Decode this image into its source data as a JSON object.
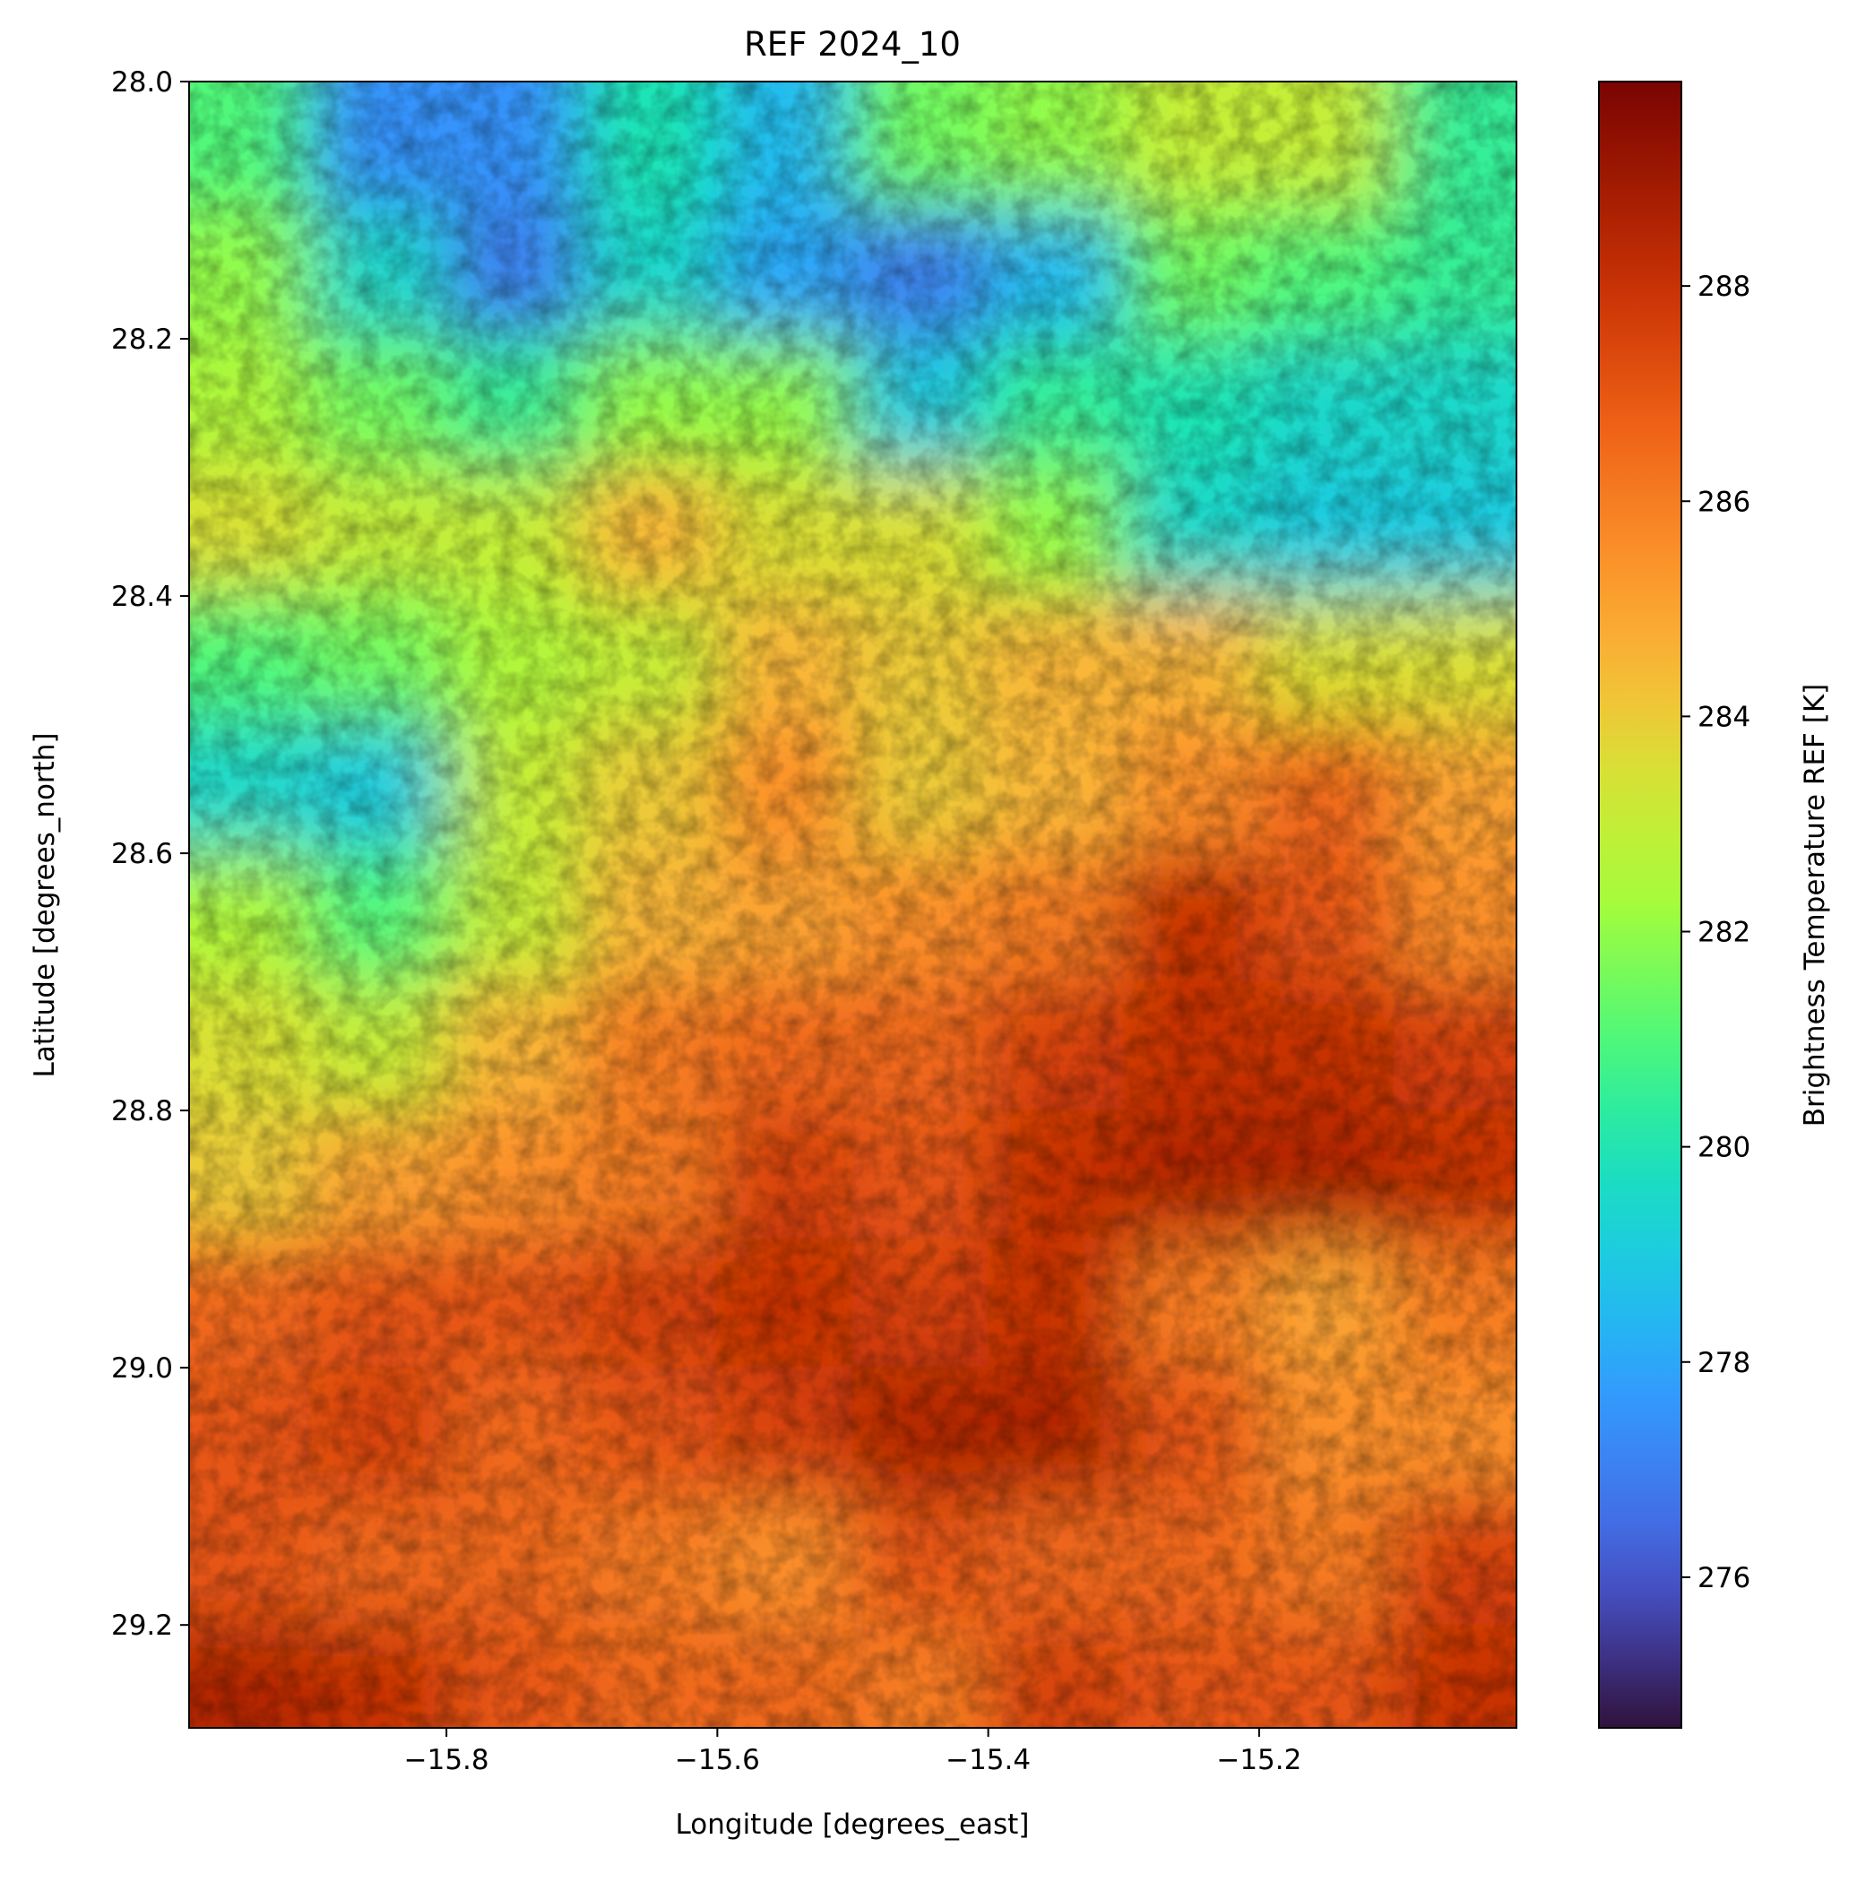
{
  "chart_data": {
    "type": "heatmap",
    "title": "REF 2024_10",
    "xlabel": "Longitude [degrees_east]",
    "ylabel": "Latitude [degrees_north]",
    "xlim": [
      -15.99,
      -15.01
    ],
    "ylim": [
      28.0,
      29.28
    ],
    "y_inverted": true,
    "x_ticks": [
      {
        "value": -15.8,
        "label": "−15.8"
      },
      {
        "value": -15.6,
        "label": "−15.6"
      },
      {
        "value": -15.4,
        "label": "−15.4"
      },
      {
        "value": -15.2,
        "label": "−15.2"
      }
    ],
    "y_ticks": [
      {
        "value": 28.0,
        "label": "28.0"
      },
      {
        "value": 28.2,
        "label": "28.2"
      },
      {
        "value": 28.4,
        "label": "28.4"
      },
      {
        "value": 28.6,
        "label": "28.6"
      },
      {
        "value": 28.8,
        "label": "28.8"
      },
      {
        "value": 29.0,
        "label": "29.0"
      },
      {
        "value": 29.2,
        "label": "29.2"
      }
    ],
    "colorbar": {
      "label": "Brightness Temperature REF [K]",
      "colormap": "turbo",
      "vmin": 274.6,
      "vmax": 289.9,
      "ticks": [
        {
          "value": 276,
          "label": "276"
        },
        {
          "value": 278,
          "label": "278"
        },
        {
          "value": 280,
          "label": "280"
        },
        {
          "value": 282,
          "label": "282"
        },
        {
          "value": 284,
          "label": "284"
        },
        {
          "value": 286,
          "label": "286"
        },
        {
          "value": 288,
          "label": "288"
        }
      ]
    },
    "grid_lon": [
      -15.95,
      -15.85,
      -15.75,
      -15.65,
      -15.55,
      -15.45,
      -15.35,
      -15.25,
      -15.15,
      -15.05
    ],
    "grid_lat": [
      28.05,
      28.15,
      28.25,
      28.35,
      28.45,
      28.55,
      28.65,
      28.75,
      28.85,
      28.95,
      29.05,
      29.15,
      29.25
    ],
    "values": [
      [
        281.0,
        277.5,
        277.5,
        280.0,
        278.5,
        281.5,
        282.0,
        283.0,
        283.0,
        280.5
      ],
      [
        282.0,
        279.5,
        277.0,
        279.5,
        278.0,
        277.0,
        278.5,
        281.5,
        281.0,
        280.5
      ],
      [
        282.5,
        281.5,
        280.5,
        282.0,
        282.0,
        279.0,
        280.5,
        280.0,
        279.5,
        279.5
      ],
      [
        283.5,
        283.0,
        283.0,
        284.5,
        283.5,
        283.5,
        282.0,
        279.5,
        279.0,
        279.0
      ],
      [
        281.0,
        281.5,
        282.5,
        283.0,
        284.5,
        284.0,
        284.5,
        284.5,
        283.5,
        283.5
      ],
      [
        279.5,
        279.0,
        283.0,
        284.0,
        285.5,
        284.0,
        284.5,
        285.5,
        286.5,
        285.0
      ],
      [
        282.5,
        281.0,
        283.0,
        284.5,
        285.0,
        285.5,
        286.0,
        288.0,
        287.0,
        285.5
      ],
      [
        283.5,
        283.0,
        284.5,
        286.0,
        286.5,
        286.5,
        287.5,
        288.0,
        288.0,
        287.5
      ],
      [
        284.0,
        285.0,
        285.5,
        286.0,
        287.5,
        287.0,
        288.0,
        288.5,
        288.5,
        288.0
      ],
      [
        286.5,
        287.0,
        287.0,
        287.5,
        288.0,
        287.5,
        288.0,
        286.0,
        285.0,
        286.0
      ],
      [
        287.0,
        287.5,
        286.5,
        287.0,
        287.5,
        288.5,
        288.5,
        287.0,
        285.5,
        285.5
      ],
      [
        287.0,
        286.5,
        286.5,
        286.0,
        285.5,
        287.0,
        286.5,
        286.5,
        286.0,
        287.5
      ],
      [
        288.5,
        288.0,
        287.0,
        286.5,
        286.5,
        286.0,
        287.5,
        287.0,
        287.0,
        288.0
      ]
    ]
  }
}
